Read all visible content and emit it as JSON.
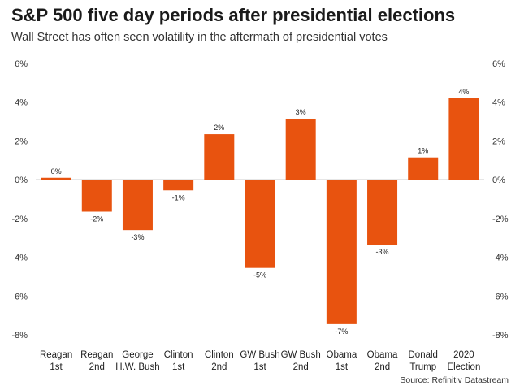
{
  "chart_data": {
    "type": "bar",
    "title": "S&P 500 five day periods after presidential elections",
    "subtitle": "Wall Street has often seen volatility in the aftermath of presidential votes",
    "source": "Source: Refinitiv Datastream",
    "categories": [
      [
        "Reagan",
        "1st"
      ],
      [
        "Reagan",
        "2nd"
      ],
      [
        "George",
        "H.W. Bush"
      ],
      [
        "Clinton",
        "1st"
      ],
      [
        "Clinton",
        "2nd"
      ],
      [
        "GW Bush",
        "1st"
      ],
      [
        "GW Bush",
        "2nd"
      ],
      [
        "Obama",
        "1st"
      ],
      [
        "Obama",
        "2nd"
      ],
      [
        "Donald",
        "Trump"
      ],
      [
        "2020",
        "Election"
      ]
    ],
    "values": [
      0.1,
      -1.65,
      -2.6,
      -0.55,
      2.35,
      -4.55,
      3.15,
      -7.45,
      -3.35,
      1.15,
      4.2
    ],
    "data_labels": [
      "0%",
      "-2%",
      "-3%",
      "-1%",
      "2%",
      "-5%",
      "3%",
      "-7%",
      "-3%",
      "1%",
      "4%"
    ],
    "yticks": [
      6,
      4,
      2,
      0,
      -2,
      -4,
      -6,
      -8
    ],
    "ytick_labels": [
      "6%",
      "4%",
      "2%",
      "0%",
      "-2%",
      "-4%",
      "-6%",
      "-8%"
    ],
    "ylim": [
      -8,
      6
    ],
    "bar_color": "#e8530f",
    "grid": false,
    "zero_line": true
  }
}
